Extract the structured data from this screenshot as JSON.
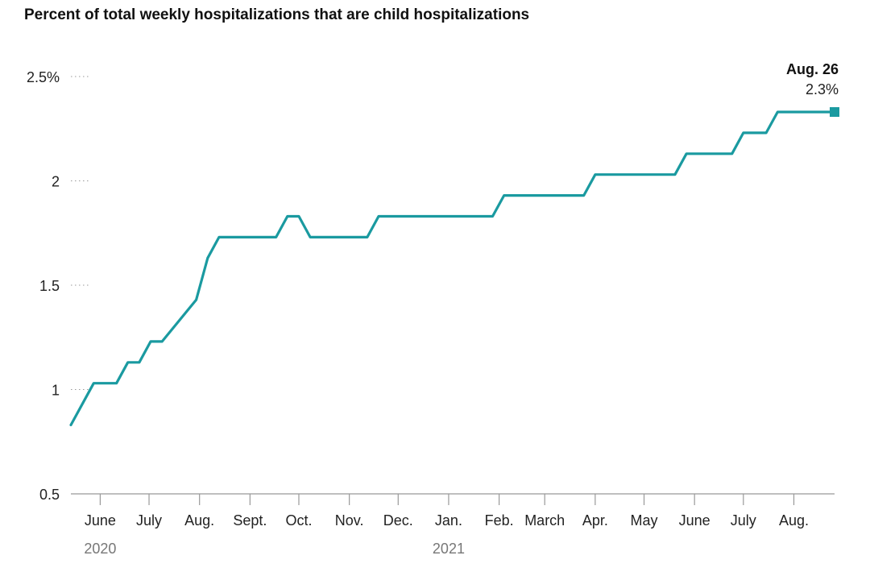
{
  "chart_data": {
    "type": "line",
    "title": "Percent of total weekly hospitalizations that are child hospitalizations",
    "xlabel": "",
    "ylabel": "",
    "ylim": [
      0.5,
      2.5
    ],
    "y_ticks": [
      {
        "value": 2.5,
        "label": "2.5%"
      },
      {
        "value": 2.0,
        "label": "2"
      },
      {
        "value": 1.5,
        "label": "1.5"
      },
      {
        "value": 1.0,
        "label": "1"
      },
      {
        "value": 0.5,
        "label": "0.5"
      }
    ],
    "x_ticks": [
      {
        "date": "2020-06-01",
        "label": "June"
      },
      {
        "date": "2020-07-01",
        "label": "July"
      },
      {
        "date": "2020-08-01",
        "label": "Aug."
      },
      {
        "date": "2020-09-01",
        "label": "Sept."
      },
      {
        "date": "2020-10-01",
        "label": "Oct."
      },
      {
        "date": "2020-11-01",
        "label": "Nov."
      },
      {
        "date": "2020-12-01",
        "label": "Dec."
      },
      {
        "date": "2021-01-01",
        "label": "Jan."
      },
      {
        "date": "2021-02-01",
        "label": "Feb."
      },
      {
        "date": "2021-03-01",
        "label": "March"
      },
      {
        "date": "2021-04-01",
        "label": "Apr."
      },
      {
        "date": "2021-05-01",
        "label": "May"
      },
      {
        "date": "2021-06-01",
        "label": "June"
      },
      {
        "date": "2021-07-01",
        "label": "July"
      },
      {
        "date": "2021-08-01",
        "label": "Aug."
      }
    ],
    "year_labels": [
      {
        "date": "2020-06-01",
        "label": "2020"
      },
      {
        "date": "2021-01-01",
        "label": "2021"
      }
    ],
    "series": [
      {
        "color": "#1a9aa0",
        "points": [
          {
            "x": "2020-05-14",
            "y": 0.83
          },
          {
            "x": "2020-05-28",
            "y": 1.03
          },
          {
            "x": "2020-06-11",
            "y": 1.03
          },
          {
            "x": "2020-06-18",
            "y": 1.13
          },
          {
            "x": "2020-06-25",
            "y": 1.13
          },
          {
            "x": "2020-07-02",
            "y": 1.23
          },
          {
            "x": "2020-07-09",
            "y": 1.23
          },
          {
            "x": "2020-07-30",
            "y": 1.43
          },
          {
            "x": "2020-08-06",
            "y": 1.63
          },
          {
            "x": "2020-08-13",
            "y": 1.73
          },
          {
            "x": "2020-09-17",
            "y": 1.73
          },
          {
            "x": "2020-09-24",
            "y": 1.83
          },
          {
            "x": "2020-10-01",
            "y": 1.83
          },
          {
            "x": "2020-10-08",
            "y": 1.73
          },
          {
            "x": "2020-11-12",
            "y": 1.73
          },
          {
            "x": "2020-11-19",
            "y": 1.83
          },
          {
            "x": "2021-01-28",
            "y": 1.83
          },
          {
            "x": "2021-02-04",
            "y": 1.93
          },
          {
            "x": "2021-03-25",
            "y": 1.93
          },
          {
            "x": "2021-04-01",
            "y": 2.03
          },
          {
            "x": "2021-05-20",
            "y": 2.03
          },
          {
            "x": "2021-05-27",
            "y": 2.13
          },
          {
            "x": "2021-06-24",
            "y": 2.13
          },
          {
            "x": "2021-07-01",
            "y": 2.23
          },
          {
            "x": "2021-07-15",
            "y": 2.23
          },
          {
            "x": "2021-07-22",
            "y": 2.33
          },
          {
            "x": "2021-08-26",
            "y": 2.33
          }
        ]
      }
    ],
    "annotation": {
      "x": "2021-08-26",
      "y": 2.33,
      "date_label": "Aug. 26",
      "value_label": "2.3%"
    }
  }
}
